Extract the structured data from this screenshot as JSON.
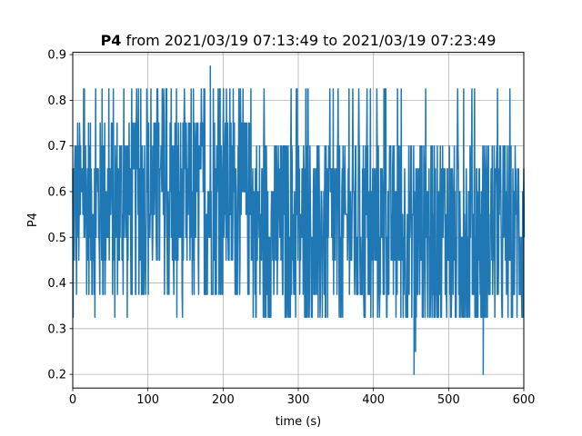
{
  "chart_data": {
    "type": "line",
    "title_bold": "P4",
    "title_rest": " from 2021/03/19 07:13:49 to 2021/03/19 07:23:49",
    "xlabel": "time (s)",
    "ylabel": "P4",
    "xlim": [
      0,
      600
    ],
    "ylim": [
      0.17,
      0.905
    ],
    "xticks": [
      0,
      100,
      200,
      300,
      400,
      500,
      600
    ],
    "yticks": [
      0.2,
      0.3,
      0.4,
      0.5,
      0.6,
      0.7,
      0.8,
      0.9
    ],
    "grid": true,
    "series_color": "#1f77b4",
    "levels": [
      0.2,
      0.25,
      0.325,
      0.375,
      0.45,
      0.5,
      0.55,
      0.6,
      0.65,
      0.7,
      0.75,
      0.825,
      0.875
    ],
    "sampling": {
      "start": 0,
      "end": 600,
      "step": 1
    },
    "extremes": [
      {
        "x": 183,
        "y": 0.875
      },
      {
        "x": 454,
        "y": 0.2
      },
      {
        "x": 456,
        "y": 0.25
      },
      {
        "x": 546,
        "y": 0.2
      }
    ]
  }
}
